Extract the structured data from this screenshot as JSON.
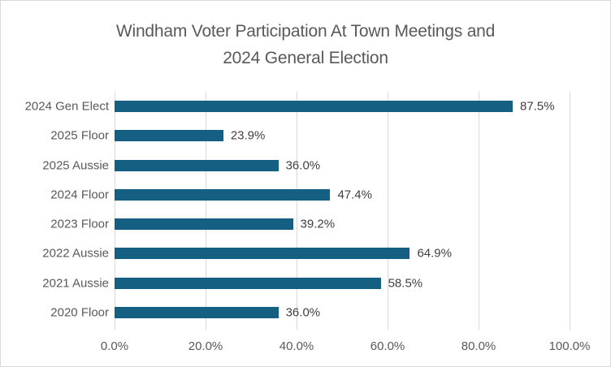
{
  "window": {
    "background": "#FFFFFF",
    "border_color": "#D9D9D9"
  },
  "title": {
    "line1": "Windham Voter Participation At Town Meetings and",
    "line2": "2024 General Election",
    "color": "#595959"
  },
  "chart_data": {
    "type": "bar",
    "orientation": "horizontal",
    "title": "Windham Voter Participation At Town Meetings and 2024 General Election",
    "categories": [
      "2024 Gen Elect",
      "2025 Floor",
      "2025 Aussie",
      "2024 Floor",
      "2023 Floor",
      "2022 Aussie",
      "2021 Aussie",
      "2020 Floor"
    ],
    "values": [
      87.5,
      23.9,
      36.0,
      47.4,
      39.2,
      64.9,
      58.5,
      36.0
    ],
    "data_labels": [
      "87.5%",
      "23.9%",
      "36.0%",
      "47.4%",
      "39.2%",
      "64.9%",
      "58.5%",
      "36.0%"
    ],
    "xlim": [
      0,
      100
    ],
    "x_ticks": [
      0,
      20,
      40,
      60,
      80,
      100
    ],
    "x_tick_labels": [
      "0.0%",
      "20.0%",
      "40.0%",
      "60.0%",
      "80.0%",
      "100.0%"
    ],
    "grid": true,
    "legend": "none",
    "bar_color": "#156082",
    "gridline_color": "#D9D9D9",
    "data_label_color": "#404040",
    "axis_text_color": "#595959"
  }
}
